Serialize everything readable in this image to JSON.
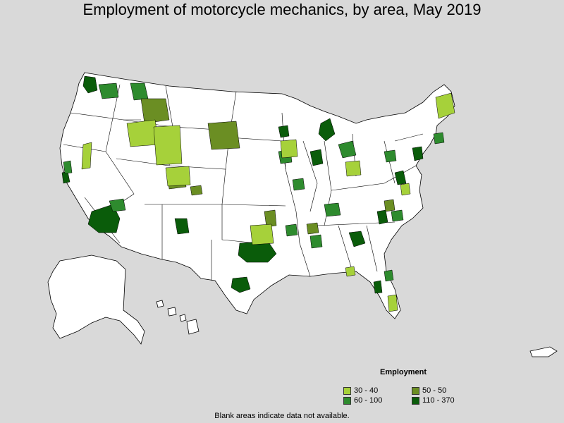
{
  "title": "Employment of motorcycle mechanics, by area, May 2019",
  "legend": {
    "title": "Employment",
    "items": [
      {
        "label": "30 - 40",
        "color": "#a6d13a"
      },
      {
        "label": "50 - 50",
        "color": "#6b8e23"
      },
      {
        "label": "60 - 100",
        "color": "#2e8b2e"
      },
      {
        "label": "110 - 370",
        "color": "#0a5c0a"
      }
    ]
  },
  "footnote": "Blank areas indicate data not available.",
  "colors": {
    "background": "#d9d9d9",
    "land": "#ffffff",
    "border": "#000000"
  }
}
